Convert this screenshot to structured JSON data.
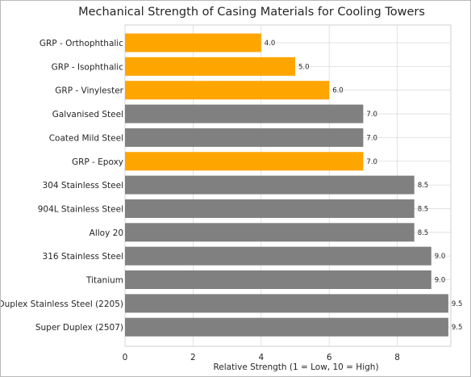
{
  "chart_data": {
    "type": "bar",
    "orientation": "horizontal",
    "title": "Mechanical Strength of Casing Materials for Cooling Towers",
    "xlabel": "Relative Strength (1 = Low, 10 = High)",
    "ylabel": "",
    "xlim": [
      0,
      9.5
    ],
    "xticks": [
      0,
      2,
      4,
      6,
      8
    ],
    "grid": true,
    "categories": [
      "GRP - Orthophthalic",
      "GRP - Isophthalic",
      "GRP - Vinylester",
      "Galvanised Steel",
      "Coated Mild Steel",
      "GRP - Epoxy",
      "304 Stainless Steel",
      "904L Stainless Steel",
      "Alloy 20",
      "316 Stainless Steel",
      "Titanium",
      "Duplex Stainless Steel (2205)",
      "Super Duplex (2507)"
    ],
    "values": [
      4.0,
      5.0,
      6.0,
      7.0,
      7.0,
      7.0,
      8.5,
      8.5,
      8.5,
      9.0,
      9.0,
      9.5,
      9.5
    ],
    "value_labels": [
      "4.0",
      "5.0",
      "6.0",
      "7.0",
      "7.0",
      "7.0",
      "8.5",
      "8.5",
      "8.5",
      "9.0",
      "9.0",
      "9.5",
      "9.5"
    ],
    "bar_colors": [
      "#FFA500",
      "#FFA500",
      "#FFA500",
      "#808080",
      "#808080",
      "#FFA500",
      "#808080",
      "#808080",
      "#808080",
      "#808080",
      "#808080",
      "#808080",
      "#808080"
    ]
  }
}
